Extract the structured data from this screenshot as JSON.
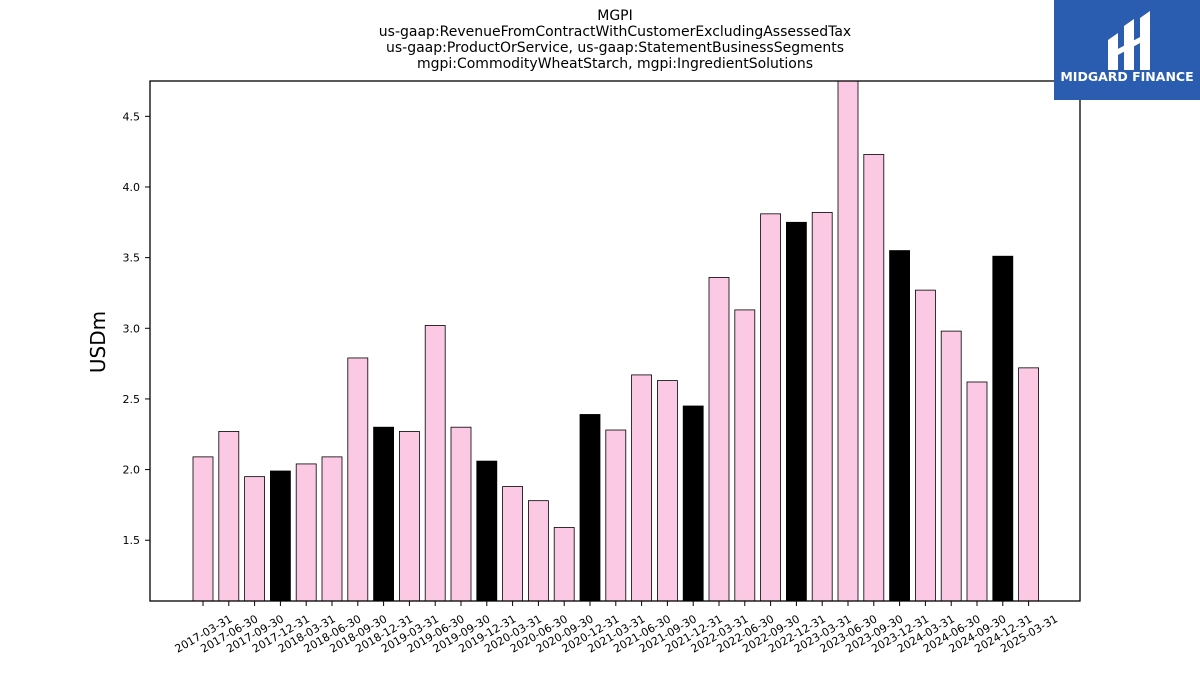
{
  "chart_data": {
    "type": "bar",
    "title_lines": [
      "MGPI",
      "us-gaap:RevenueFromContractWithCustomerExcludingAssessedTax",
      "us-gaap:ProductOrService, us-gaap:StatementBusinessSegments",
      "mgpi:CommodityWheatStarch, mgpi:IngredientSolutions"
    ],
    "xlabel": "",
    "ylabel": "USDm",
    "ylim": [
      1.07,
      4.75
    ],
    "yticks": [
      1.5,
      2.0,
      2.5,
      3.0,
      3.5,
      4.0,
      4.5
    ],
    "grid": false,
    "colors": {
      "quarter": "#fbc9e3",
      "year_end": "#000000",
      "edge": "#000000"
    },
    "categories": [
      "2017-03-31",
      "2017-06-30",
      "2017-09-30",
      "2017-12-31",
      "2018-03-31",
      "2018-06-30",
      "2018-09-30",
      "2018-12-31",
      "2019-03-31",
      "2019-06-30",
      "2019-09-30",
      "2019-12-31",
      "2020-03-31",
      "2020-06-30",
      "2020-09-30",
      "2020-12-31",
      "2021-03-31",
      "2021-06-30",
      "2021-09-30",
      "2021-12-31",
      "2022-03-31",
      "2022-06-30",
      "2022-09-30",
      "2022-12-31",
      "2023-03-31",
      "2023-06-30",
      "2023-09-30",
      "2023-12-31",
      "2024-03-31",
      "2024-06-30",
      "2024-09-30",
      "2024-12-31",
      "2025-03-31"
    ],
    "values": [
      2.09,
      2.27,
      1.95,
      1.99,
      2.04,
      2.09,
      2.79,
      2.3,
      2.27,
      3.02,
      2.3,
      2.06,
      1.88,
      1.78,
      1.59,
      2.39,
      2.28,
      2.67,
      2.63,
      2.45,
      3.36,
      3.13,
      3.81,
      3.75,
      3.82,
      4.76,
      4.23,
      3.55,
      3.27,
      2.98,
      2.62,
      3.51,
      2.72
    ]
  },
  "logo": {
    "text": "MIDGARD FINANCE",
    "background": "#2a5db0"
  }
}
